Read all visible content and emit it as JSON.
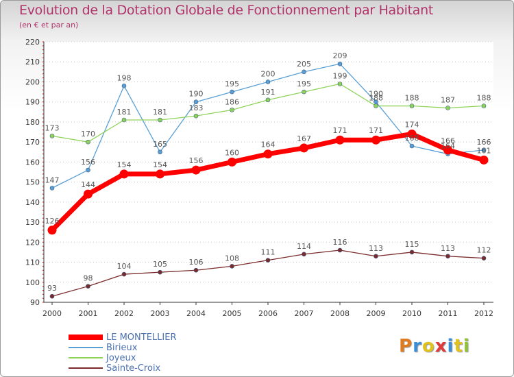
{
  "title": "Evolution de la Dotation Globale de Fonctionnement par Habitant",
  "subtitle": "(en € et par an)",
  "brand": "Proxiti",
  "brand_colors": [
    "#e07a1e",
    "#3a8fd8",
    "#e0c21e",
    "#e03a3a",
    "#3a8fd8",
    "#e0c21e",
    "#8fc43a"
  ],
  "chart_data": {
    "type": "line",
    "title": "Evolution de la Dotation Globale de Fonctionnement par Habitant",
    "subtitle": "(en € et par an)",
    "x": [
      "2000",
      "2001",
      "2002",
      "2003",
      "2004",
      "2005",
      "2006",
      "2007",
      "2008",
      "2009",
      "2010",
      "2011",
      "2012"
    ],
    "ylim": [
      90,
      220
    ],
    "yticks": [
      90,
      100,
      110,
      120,
      130,
      140,
      150,
      160,
      170,
      180,
      190,
      200,
      210,
      220
    ],
    "grid": "horizontal-dotted",
    "legend_position": "bottom-left",
    "series": [
      {
        "name": "LE MONTELLIER",
        "color": "#ff0000",
        "highlight": true,
        "values": [
          126,
          144,
          154,
          154,
          156,
          160,
          164,
          167,
          171,
          171,
          174,
          166,
          161
        ]
      },
      {
        "name": "Birieux",
        "color": "#5a9fd4",
        "highlight": false,
        "values": [
          147,
          156,
          198,
          165,
          190,
          195,
          200,
          205,
          209,
          190,
          168,
          164,
          166
        ]
      },
      {
        "name": "Joyeux",
        "color": "#8fd45a",
        "highlight": false,
        "values": [
          173,
          170,
          181,
          181,
          183,
          186,
          191,
          195,
          199,
          188,
          188,
          187,
          188
        ]
      },
      {
        "name": "Sainte-Croix",
        "color": "#7a2a2a",
        "highlight": false,
        "values": [
          93,
          98,
          104,
          105,
          106,
          108,
          111,
          114,
          116,
          113,
          115,
          113,
          112
        ]
      }
    ]
  }
}
